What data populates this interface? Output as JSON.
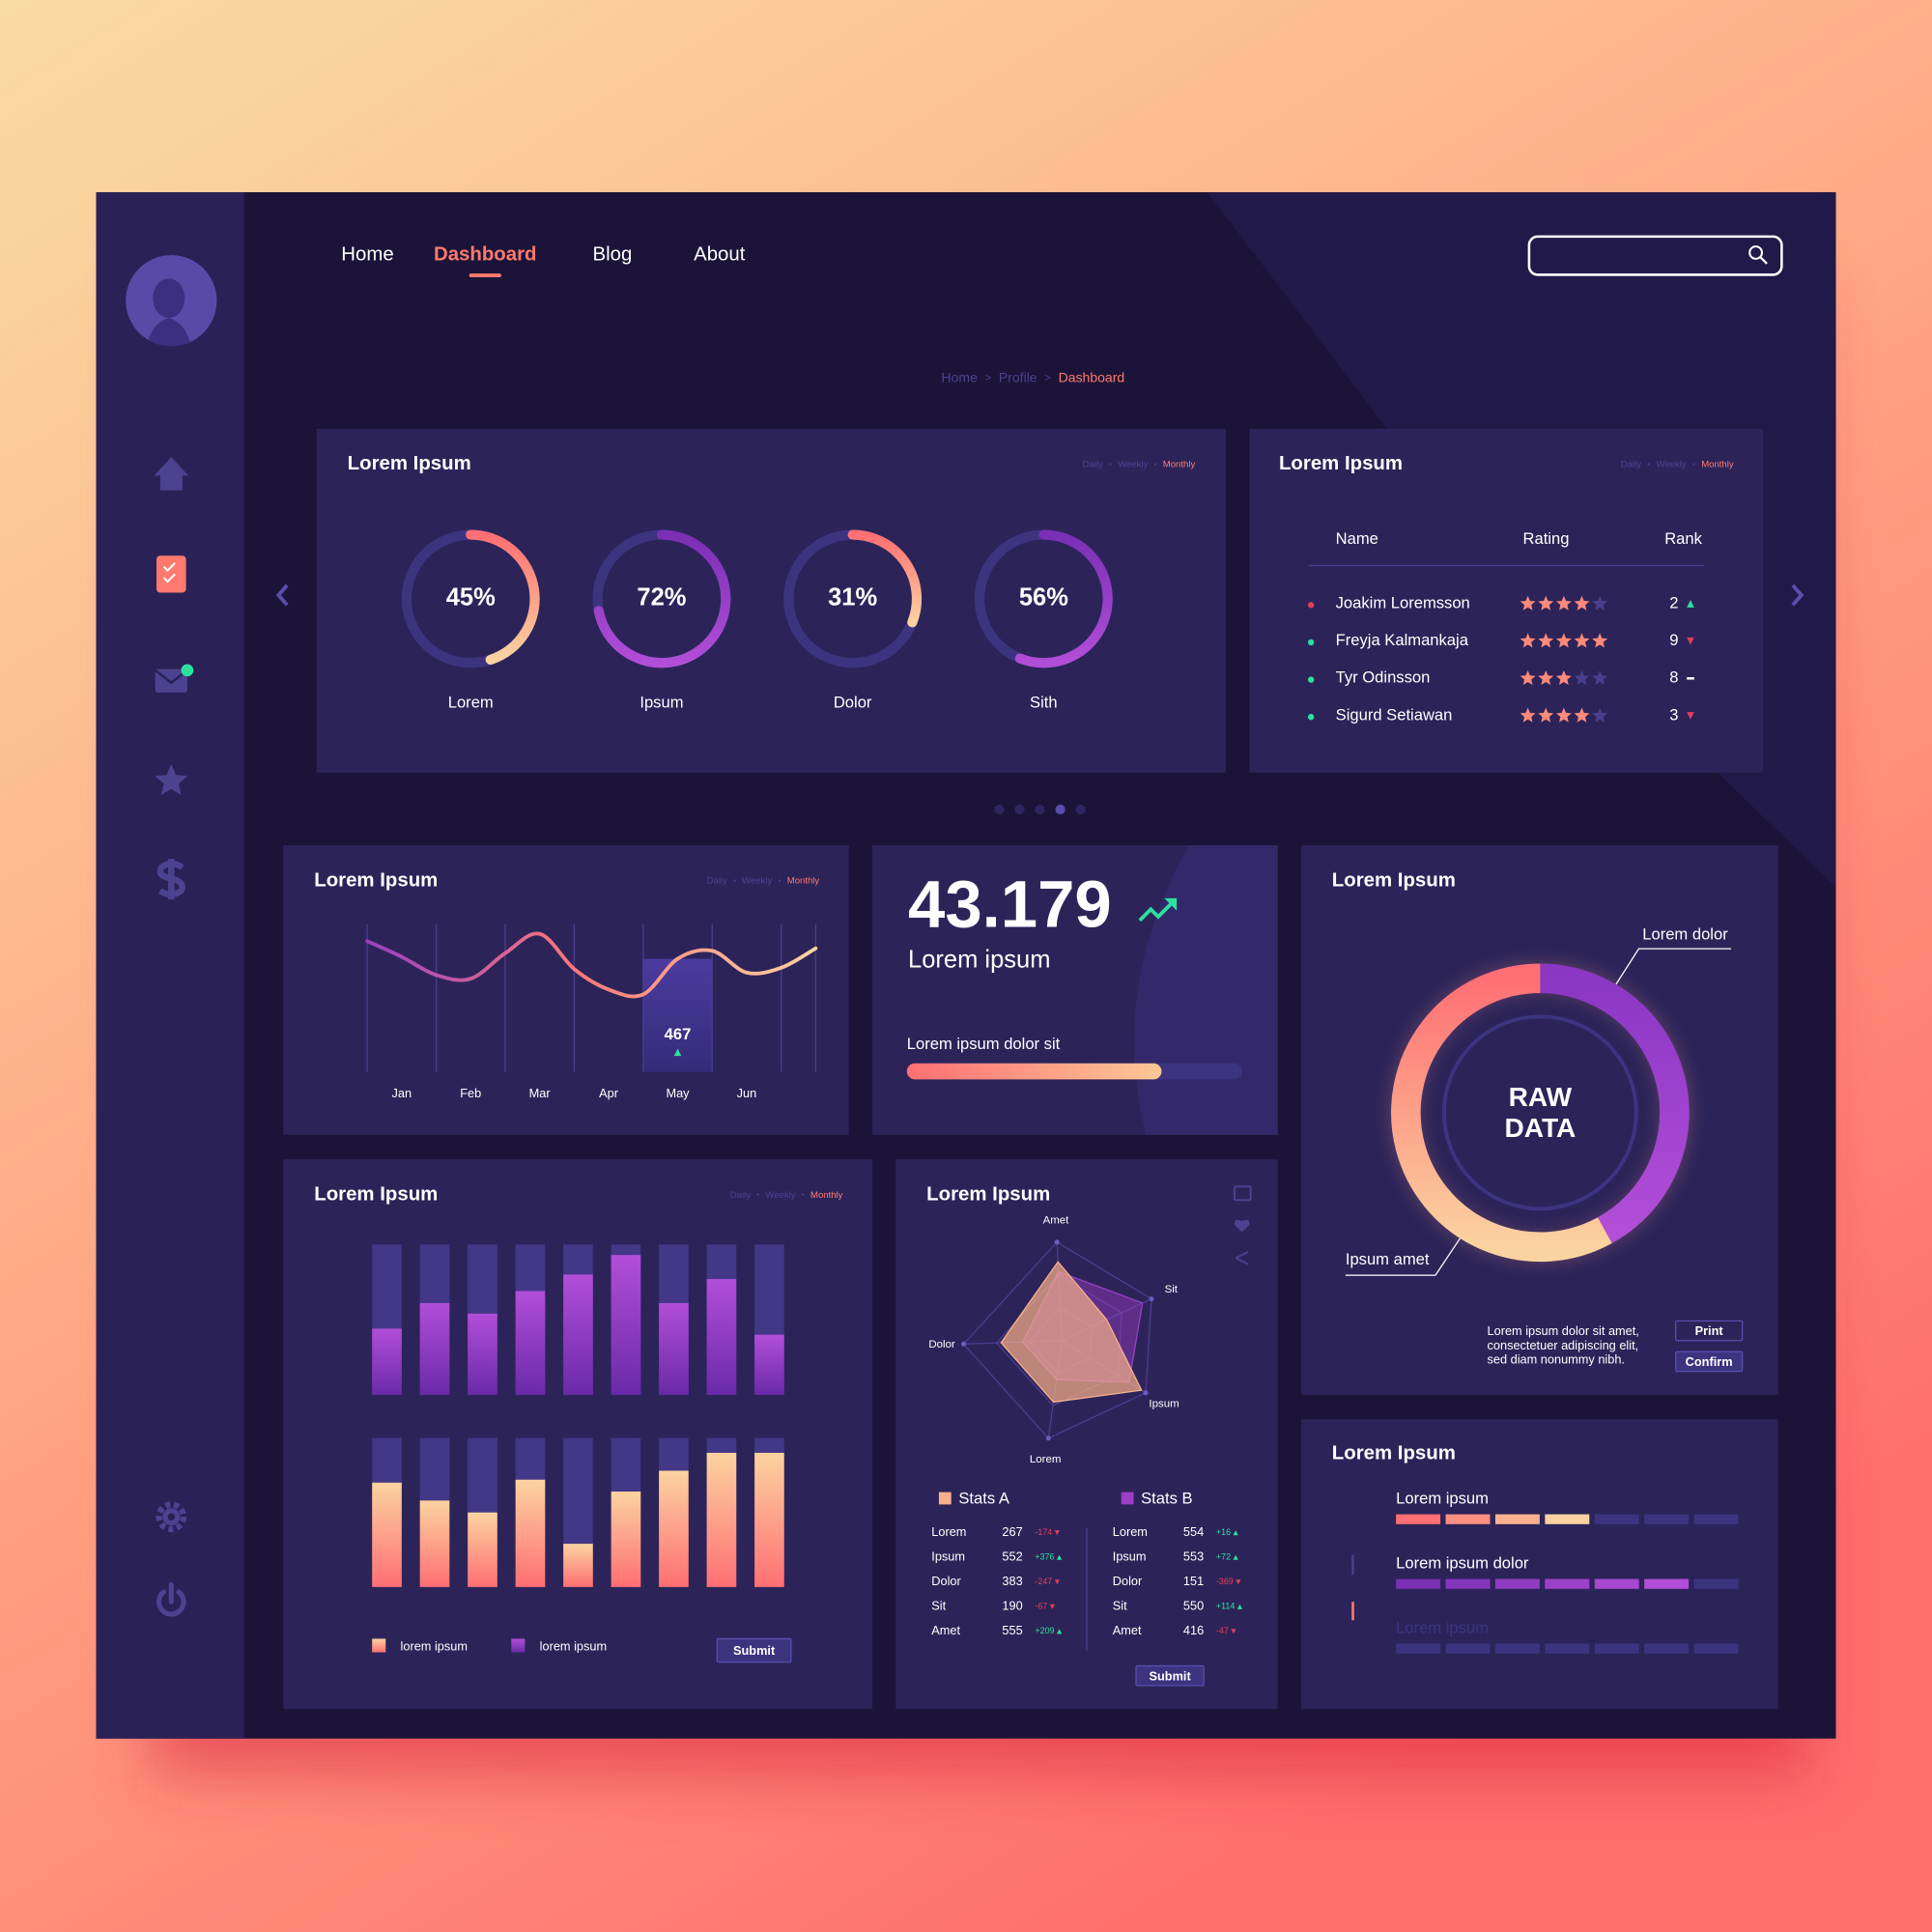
{
  "nav": {
    "items": [
      "Home",
      "Dashboard",
      "Blog",
      "About"
    ],
    "active": 1
  },
  "breadcrumb": {
    "items": [
      "Home",
      "Profile",
      "Dashboard"
    ],
    "separator": ">"
  },
  "periods": {
    "items": [
      "Daily",
      "Weekly",
      "Monthly"
    ],
    "active": 2,
    "separator": "•"
  },
  "carousel": {
    "pages": 5,
    "active": 3
  },
  "ranking": {
    "title": "Lorem Ipsum",
    "columns": [
      "Name",
      "Rating",
      "Rank"
    ],
    "rating_max": 5,
    "rows": [
      {
        "name": "Joakim Loremsson",
        "rating": 4,
        "rank": 2,
        "trend": "up",
        "status": "#e0405a"
      },
      {
        "name": "Freyja Kalmankaja",
        "rating": 5,
        "rank": 9,
        "trend": "down",
        "status": "#2ee0a0"
      },
      {
        "name": "Tyr Odinsson",
        "rating": 3,
        "rank": 8,
        "trend": "flat",
        "status": "#2ee0a0"
      },
      {
        "name": "Sigurd Setiawan",
        "rating": 4,
        "rank": 3,
        "trend": "down",
        "status": "#2ee0a0"
      }
    ]
  },
  "kpi": {
    "value": "43.179",
    "label": "Lorem ipsum",
    "progress_label": "Lorem ipsum dolor sit",
    "progress": 76,
    "progress_lim": [
      0,
      100
    ],
    "colors": [
      "#ff6f73",
      "#fbc896"
    ]
  },
  "donut_note": {
    "lines": [
      "Lorem ipsum dolor sit amet,",
      "consectetuer adipiscing elit,",
      "sed diam nonummy nibh."
    ],
    "buttons": [
      "Print",
      "Confirm"
    ]
  },
  "buttons": {
    "bars": "Submit",
    "radar": "Submit"
  },
  "stats_tables": [
    {
      "rows": [
        [
          "Lorem",
          267,
          "-174"
        ],
        [
          "Ipsum",
          552,
          "+376"
        ],
        [
          "Dolor",
          383,
          "-247"
        ],
        [
          "Sit",
          190,
          "-67"
        ],
        [
          "Amet",
          555,
          "+209"
        ]
      ]
    },
    {
      "rows": [
        [
          "Lorem",
          554,
          "+16"
        ],
        [
          "Ipsum",
          553,
          "+72"
        ],
        [
          "Dolor",
          151,
          "-369"
        ],
        [
          "Sit",
          550,
          "+114"
        ],
        [
          "Amet",
          416,
          "-47"
        ]
      ]
    }
  ],
  "chart_data": [
    {
      "type": "gauge",
      "title": "Lorem Ipsum",
      "categories": [
        "Lorem",
        "Ipsum",
        "Dolor",
        "Sith"
      ],
      "values": [
        45,
        72,
        31,
        56
      ],
      "value_labels": [
        "45%",
        "72%",
        "31%",
        "56%"
      ],
      "ylim": [
        0,
        100
      ],
      "track_color": "#3d3480",
      "colors": [
        [
          "#ff6f73",
          "#fbd3a0"
        ],
        [
          "#7a2fb5",
          "#b24ed8"
        ],
        [
          "#ff6f73",
          "#fbd3a0"
        ],
        [
          "#7a2fb5",
          "#b24ed8"
        ]
      ]
    },
    {
      "type": "line",
      "title": "Lorem Ipsum",
      "categories": [
        null,
        "Jan",
        null,
        "Feb",
        null,
        "Mar",
        null,
        "Apr",
        null,
        "May",
        null,
        "Jun",
        null,
        null
      ],
      "values": [
        540,
        475,
        400,
        385,
        490,
        570,
        425,
        340,
        320,
        467,
        500,
        410,
        430,
        510
      ],
      "ylim": [
        0,
        600
      ],
      "highlight": 9,
      "colors": [
        "#8e3bc6",
        "#ff7a7a",
        "#fbd3a0"
      ]
    },
    {
      "type": "donut",
      "title": "Lorem Ipsum",
      "center_label": [
        "RAW",
        "DATA"
      ],
      "categories": [
        "Lorem dolor",
        "Ipsum amet"
      ],
      "values": [
        42,
        58
      ],
      "colors": [
        [
          "#8a37c4",
          "#b24ed8"
        ],
        [
          "#ff6f73",
          "#fbd3a0"
        ]
      ]
    },
    {
      "type": "bar",
      "title": "Lorem Ipsum",
      "ylim": [
        0,
        100
      ],
      "series": [
        {
          "name": "lorem ipsum",
          "color": "#fbd3a0",
          "gradient_end": "#ff6f73",
          "values": [
            70,
            58,
            50,
            72,
            29,
            64,
            78,
            90,
            90
          ]
        },
        {
          "name": "lorem ipsum",
          "color": "#b24ed8",
          "gradient_end": "#6a2aa8",
          "values": [
            44,
            61,
            54,
            69,
            80,
            93,
            61,
            77,
            40
          ]
        }
      ]
    },
    {
      "type": "radar",
      "title": "Lorem Ipsum",
      "categories": [
        "Amet",
        "Sit",
        "Ipsum",
        "Lorem",
        "Dolor"
      ],
      "ylim": [
        0,
        100
      ],
      "series": [
        {
          "name": "Stats A",
          "color": "#f9b08a",
          "values": [
            80,
            50,
            95,
            63,
            62
          ]
        },
        {
          "name": "Stats B",
          "color": "#9b3fc4",
          "values": [
            70,
            90,
            80,
            40,
            40
          ]
        }
      ]
    },
    {
      "type": "segments",
      "title": "Lorem Ipsum",
      "categories": [
        "Lorem ipsum",
        "Lorem ipsum dolor",
        "Lorem ipsum"
      ],
      "values": [
        4,
        6,
        0
      ],
      "ylim": [
        0,
        7
      ],
      "colors": [
        [
          "#ff6f73",
          "#fbd3a0"
        ],
        [
          "#7a2fb5",
          "#b24ed8"
        ],
        [
          "#4a3f8d",
          "#4a3f8d"
        ]
      ]
    }
  ]
}
